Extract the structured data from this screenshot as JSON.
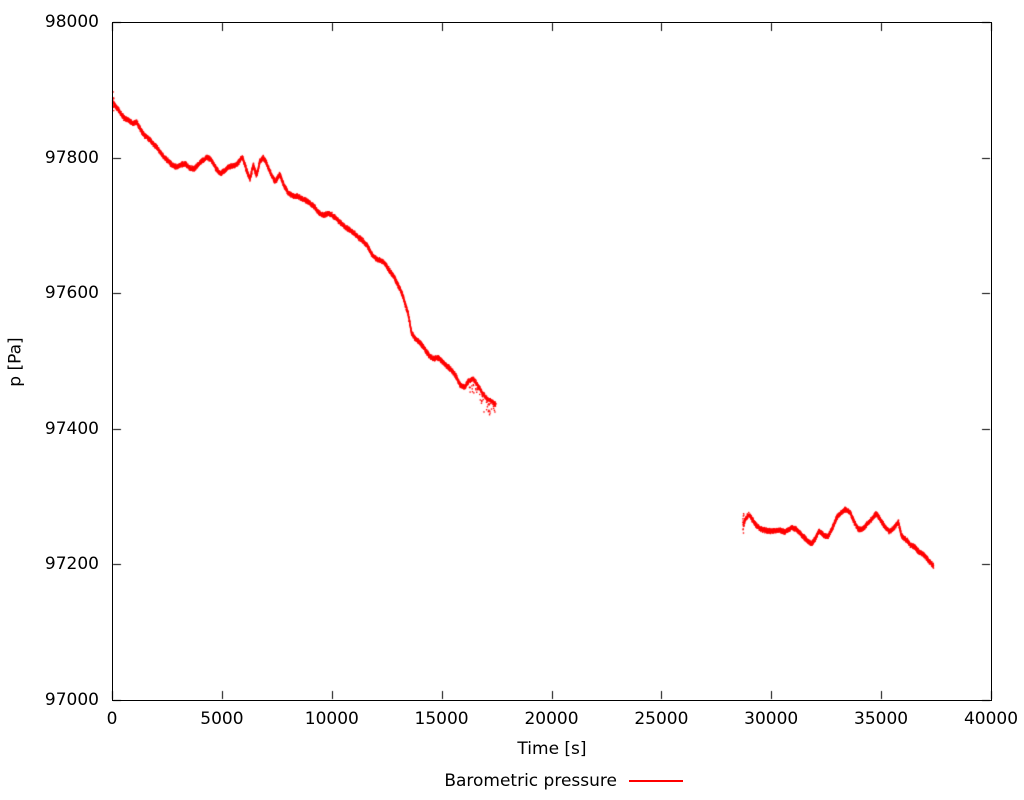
{
  "figure": {
    "background": "#ffffff",
    "text_color": "#000000",
    "axis_color": "#000000"
  },
  "chart_data": {
    "type": "scatter",
    "title": "",
    "xlabel": "Time [s]",
    "ylabel": "p [Pa]",
    "xlim": [
      0,
      40000
    ],
    "ylim": [
      97000,
      98000
    ],
    "grid": false,
    "x_ticks": [
      0,
      5000,
      10000,
      15000,
      20000,
      25000,
      30000,
      35000,
      40000
    ],
    "y_ticks": [
      97000,
      97200,
      97400,
      97600,
      97800,
      98000
    ],
    "x_tick_labels": [
      "0",
      "5000",
      "10000",
      "15000",
      "20000",
      "25000",
      "30000",
      "35000",
      "40000"
    ],
    "y_tick_labels": [
      "97000",
      "97200",
      "97400",
      "97600",
      "97800",
      "98000"
    ],
    "legend": {
      "label": "Barometric pressure",
      "color": "#ff0000",
      "position": "below-plot-center"
    },
    "series": [
      {
        "name": "Barometric pressure",
        "color": "#ff0000",
        "style": "dense-dots",
        "segments": [
          {
            "noise_pa": 4,
            "tail_scatter": true,
            "points": [
              [
                0,
                97884
              ],
              [
                150,
                97876
              ],
              [
                300,
                97870
              ],
              [
                500,
                97860
              ],
              [
                700,
                97856
              ],
              [
                900,
                97852
              ],
              [
                1100,
                97853
              ],
              [
                1300,
                97840
              ],
              [
                1500,
                97832
              ],
              [
                1700,
                97827
              ],
              [
                1900,
                97820
              ],
              [
                2100,
                97812
              ],
              [
                2300,
                97803
              ],
              [
                2500,
                97797
              ],
              [
                2700,
                97790
              ],
              [
                2900,
                97787
              ],
              [
                3100,
                97790
              ],
              [
                3300,
                97792
              ],
              [
                3500,
                97786
              ],
              [
                3700,
                97784
              ],
              [
                3900,
                97791
              ],
              [
                4100,
                97797
              ],
              [
                4300,
                97802
              ],
              [
                4500,
                97797
              ],
              [
                4700,
                97785
              ],
              [
                4900,
                97777
              ],
              [
                5100,
                97782
              ],
              [
                5300,
                97788
              ],
              [
                5500,
                97789
              ],
              [
                5700,
                97793
              ],
              [
                5900,
                97802
              ],
              [
                6100,
                97782
              ],
              [
                6250,
                97769
              ],
              [
                6400,
                97790
              ],
              [
                6550,
                97774
              ],
              [
                6700,
                97796
              ],
              [
                6850,
                97801
              ],
              [
                7000,
                97793
              ],
              [
                7200,
                97777
              ],
              [
                7400,
                97765
              ],
              [
                7600,
                97776
              ],
              [
                7800,
                97760
              ],
              [
                8000,
                97748
              ],
              [
                8200,
                97745
              ],
              [
                8400,
                97744
              ],
              [
                8600,
                97741
              ],
              [
                8800,
                97738
              ],
              [
                9000,
                97733
              ],
              [
                9200,
                97728
              ],
              [
                9400,
                97719
              ],
              [
                9600,
                97716
              ],
              [
                9800,
                97719
              ],
              [
                10000,
                97716
              ],
              [
                10200,
                97710
              ],
              [
                10400,
                97704
              ],
              [
                10600,
                97698
              ],
              [
                10800,
                97694
              ],
              [
                11000,
                97689
              ],
              [
                11200,
                97683
              ],
              [
                11400,
                97678
              ],
              [
                11600,
                97670
              ],
              [
                11800,
                97658
              ],
              [
                12000,
                97652
              ],
              [
                12200,
                97649
              ],
              [
                12400,
                97645
              ],
              [
                12600,
                97634
              ],
              [
                12800,
                97625
              ],
              [
                13000,
                97612
              ],
              [
                13200,
                97598
              ],
              [
                13350,
                97580
              ],
              [
                13450,
                97570
              ],
              [
                13600,
                97542
              ],
              [
                13800,
                97533
              ],
              [
                14000,
                97527
              ],
              [
                14200,
                97519
              ],
              [
                14400,
                97509
              ],
              [
                14600,
                97504
              ],
              [
                14800,
                97506
              ],
              [
                15000,
                97500
              ],
              [
                15200,
                97494
              ],
              [
                15400,
                97488
              ],
              [
                15600,
                97480
              ],
              [
                15800,
                97466
              ],
              [
                16000,
                97462
              ],
              [
                16200,
                97472
              ],
              [
                16400,
                97475
              ],
              [
                16600,
                97466
              ],
              [
                16800,
                97455
              ],
              [
                17000,
                97446
              ],
              [
                17200,
                97442
              ],
              [
                17430,
                97437
              ]
            ]
          },
          {
            "noise_pa": 4,
            "tail_scatter": false,
            "points": [
              [
                28680,
                97260
              ],
              [
                28800,
                97268
              ],
              [
                28950,
                97275
              ],
              [
                29100,
                97267
              ],
              [
                29300,
                97258
              ],
              [
                29500,
                97253
              ],
              [
                29700,
                97251
              ],
              [
                30000,
                97250
              ],
              [
                30300,
                97252
              ],
              [
                30600,
                97249
              ],
              [
                30900,
                97255
              ],
              [
                31100,
                97253
              ],
              [
                31300,
                97246
              ],
              [
                31550,
                97238
              ],
              [
                31800,
                97231
              ],
              [
                31950,
                97238
              ],
              [
                32150,
                97250
              ],
              [
                32350,
                97244
              ],
              [
                32550,
                97242
              ],
              [
                32750,
                97255
              ],
              [
                32950,
                97270
              ],
              [
                33150,
                97278
              ],
              [
                33350,
                97282
              ],
              [
                33550,
                97278
              ],
              [
                33750,
                97263
              ],
              [
                33950,
                97252
              ],
              [
                34150,
                97254
              ],
              [
                34350,
                97261
              ],
              [
                34550,
                97268
              ],
              [
                34750,
                97276
              ],
              [
                34950,
                97266
              ],
              [
                35150,
                97256
              ],
              [
                35350,
                97249
              ],
              [
                35550,
                97255
              ],
              [
                35750,
                97264
              ],
              [
                35900,
                97243
              ],
              [
                36100,
                97238
              ],
              [
                36300,
                97230
              ],
              [
                36500,
                97227
              ],
              [
                36700,
                97219
              ],
              [
                36900,
                97216
              ],
              [
                37100,
                97208
              ],
              [
                37350,
                97199
              ]
            ]
          }
        ]
      }
    ]
  }
}
